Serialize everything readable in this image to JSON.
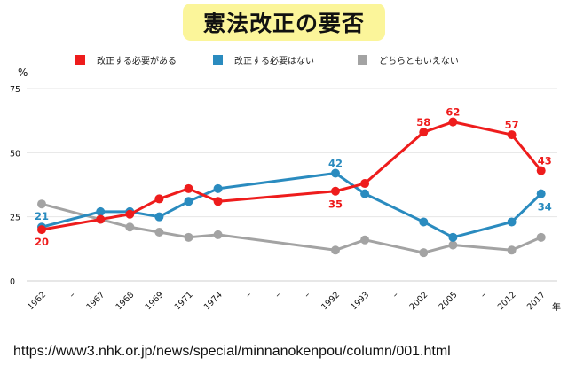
{
  "chart_data": {
    "type": "line",
    "title": "憲法改正の要否",
    "ylabel": "%",
    "xlabel": "年",
    "ylim": [
      0,
      75
    ],
    "yticks": [
      0,
      25,
      50,
      75
    ],
    "categories": [
      "1962",
      "",
      "1967",
      "1968",
      "1969",
      "1971",
      "1974",
      "",
      "",
      "",
      "1992",
      "1993",
      "",
      "2002",
      "2005",
      "",
      "2012",
      "2017"
    ],
    "separator": "–",
    "legend_position": "top",
    "series": [
      {
        "name": "改正する必要がある",
        "color": "#ee1c1c",
        "values": [
          20,
          null,
          24,
          26,
          32,
          36,
          31,
          null,
          null,
          null,
          35,
          38,
          null,
          58,
          62,
          null,
          57,
          43
        ],
        "labels": [
          {
            "index": 0,
            "text": "20"
          },
          {
            "index": 10,
            "text": "35"
          },
          {
            "index": 13,
            "text": "58"
          },
          {
            "index": 14,
            "text": "62"
          },
          {
            "index": 16,
            "text": "57"
          },
          {
            "index": 17,
            "text": "43"
          }
        ]
      },
      {
        "name": "改正する必要はない",
        "color": "#2a8bbf",
        "values": [
          21,
          null,
          27,
          27,
          25,
          31,
          36,
          null,
          null,
          null,
          42,
          34,
          null,
          23,
          17,
          null,
          23,
          34
        ],
        "labels": [
          {
            "index": 0,
            "text": "21"
          },
          {
            "index": 10,
            "text": "42"
          },
          {
            "index": 17,
            "text": "34"
          }
        ]
      },
      {
        "name": "どちらともいえない",
        "color": "#a3a3a3",
        "values": [
          30,
          null,
          24,
          21,
          19,
          17,
          18,
          null,
          null,
          null,
          12,
          16,
          null,
          11,
          14,
          null,
          12,
          17
        ],
        "labels": []
      }
    ]
  },
  "source": "https://www3.nhk.or.jp/news/special/minnanokenpou/column/001.html"
}
